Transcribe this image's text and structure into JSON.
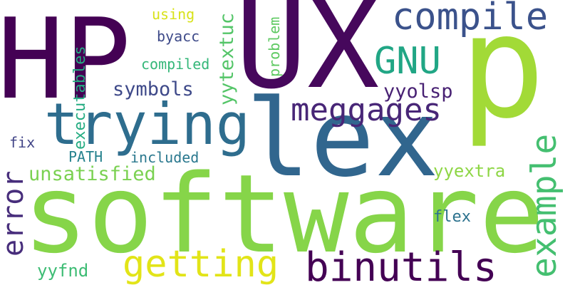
{
  "words": [
    {
      "text": "HP",
      "color": "#440154"
    },
    {
      "text": "UX",
      "color": "#46085c"
    },
    {
      "text": "p",
      "color": "#a2da37"
    },
    {
      "text": "lex",
      "color": "#31668e"
    },
    {
      "text": "software",
      "color": "#86d549"
    },
    {
      "text": "trying",
      "color": "#2e6d8e"
    },
    {
      "text": "compile",
      "color": "#3b528b"
    },
    {
      "text": "GNU",
      "color": "#21a685"
    },
    {
      "text": "meggages",
      "color": "#482677"
    },
    {
      "text": "example",
      "color": "#44bf70"
    },
    {
      "text": "binutils",
      "color": "#440154"
    },
    {
      "text": "getting",
      "color": "#e2e418"
    },
    {
      "text": "error",
      "color": "#472d7b"
    },
    {
      "text": "unsatisfied",
      "color": "#7ad151"
    },
    {
      "text": "symbols",
      "color": "#3e4989"
    },
    {
      "text": "yyolsp",
      "color": "#482173"
    },
    {
      "text": "yytextuc",
      "color": "#54c568"
    },
    {
      "text": "executables",
      "color": "#25ac82"
    },
    {
      "text": "problem",
      "color": "#5ec962"
    },
    {
      "text": "compiled",
      "color": "#35b779"
    },
    {
      "text": "byacc",
      "color": "#3e4a89"
    },
    {
      "text": "using",
      "color": "#d8e219"
    },
    {
      "text": "yyextra",
      "color": "#8ed645"
    },
    {
      "text": "flex",
      "color": "#2c728e"
    },
    {
      "text": "yyfnd",
      "color": "#3dbc74"
    },
    {
      "text": "fix",
      "color": "#414487"
    },
    {
      "text": "PATH",
      "color": "#26828e"
    },
    {
      "text": "included",
      "color": "#2a788e"
    }
  ]
}
